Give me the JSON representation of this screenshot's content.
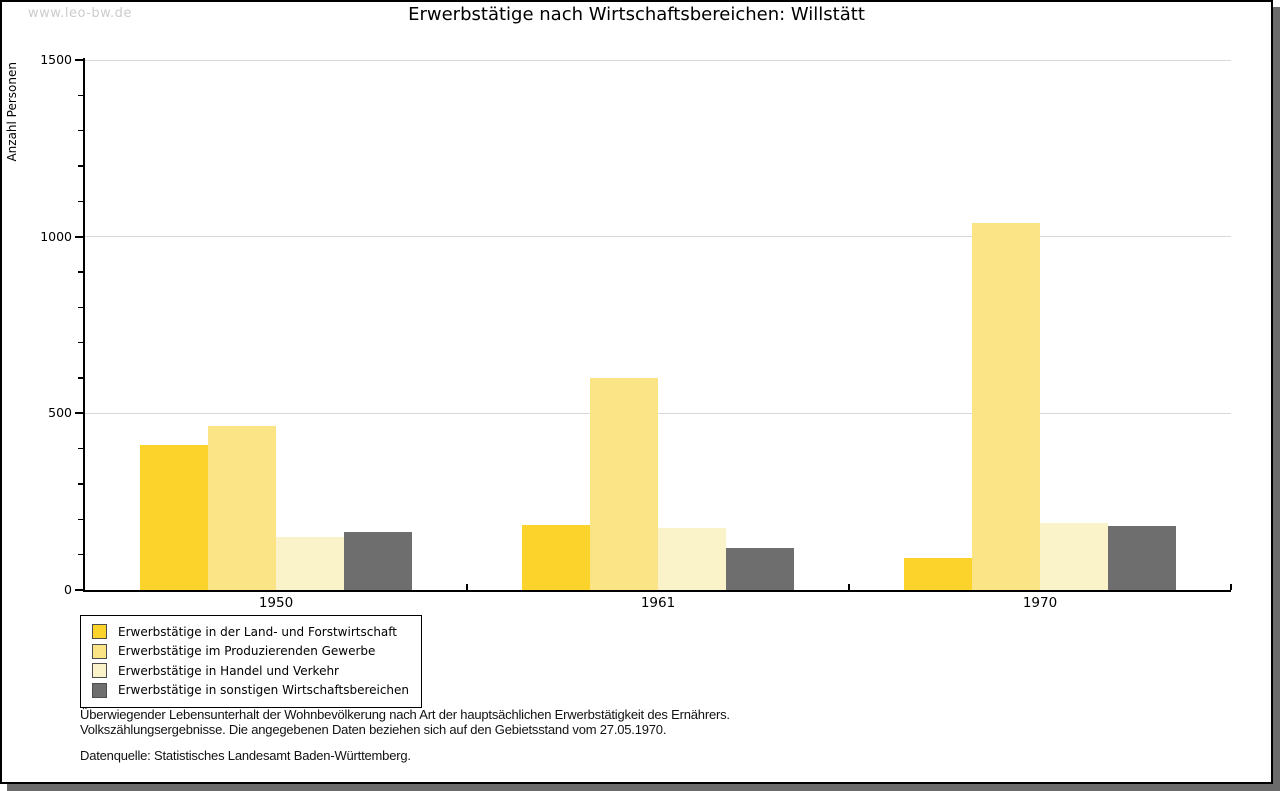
{
  "watermark": "www.leo-bw.de",
  "title": "Erwerbstätige nach Wirtschaftsbereichen: Willstätt",
  "chart_data": {
    "type": "bar",
    "title": "Erwerbstätige nach Wirtschaftsbereichen: Willstätt",
    "xlabel": "",
    "ylabel": "Anzahl Personen",
    "categories": [
      "1950",
      "1961",
      "1970"
    ],
    "series": [
      {
        "name": "Erwerbstätige in der Land- und Forstwirtschaft",
        "color": "#fcd32b",
        "values": [
          410,
          185,
          90
        ]
      },
      {
        "name": "Erwerbstätige im Produzierenden Gewerbe",
        "color": "#fbe486",
        "values": [
          465,
          600,
          1040
        ]
      },
      {
        "name": "Erwerbstätige in Handel und Verkehr",
        "color": "#faf2c8",
        "values": [
          150,
          175,
          190
        ]
      },
      {
        "name": "Erwerbstätige in sonstigen Wirtschaftsbereichen",
        "color": "#6e6e6e",
        "values": [
          165,
          120,
          180
        ]
      }
    ],
    "ylim": [
      0,
      1500
    ],
    "yticks_major": [
      0,
      500,
      1000,
      1500
    ],
    "ytick_minor_step": 100,
    "grid": true,
    "legend_position": "bottom-left",
    "gridline_color": "#d9d9d9"
  },
  "footnotes": {
    "line1": "Überwiegender Lebensunterhalt der Wohnbevölkerung nach Art der hauptsächlichen Erwerbstätigkeit des Ernährers.",
    "line2": "Volkszählungsergebnisse. Die angegebenen Daten beziehen sich auf den Gebietsstand vom 27.05.1970.",
    "source": "Datenquelle: Statistisches Landesamt Baden-Württemberg."
  }
}
